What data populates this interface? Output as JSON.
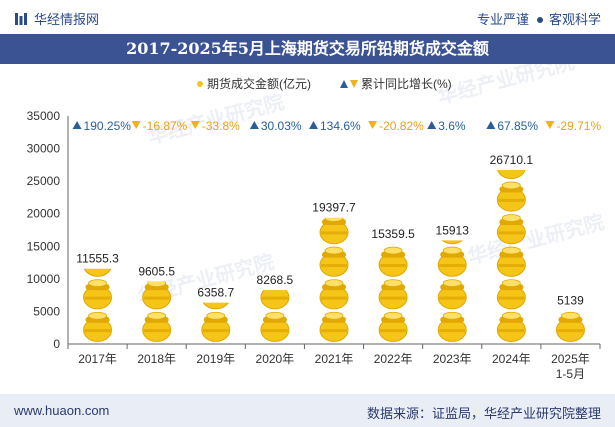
{
  "header": {
    "brand": "华经情报网",
    "tag1": "专业严谨",
    "tag2": "客观科学",
    "title": "2017-2025年5月上海期货交易所铅期货成交金额"
  },
  "footer": {
    "url": "www.huaon.com",
    "source": "数据来源：证监局，华经产业研究院整理"
  },
  "watermark": "华经产业研究院",
  "watermark_url": "www.huaon.com",
  "colors": {
    "gold": "#f5c518",
    "gold_dark": "#e0a800",
    "up": "#2a5d9a",
    "down": "#f0b11e",
    "title_bg": "#3b5293"
  },
  "chart_data": {
    "type": "bar",
    "categories": [
      "2017年",
      "2018年",
      "2019年",
      "2020年",
      "2021年",
      "2022年",
      "2023年",
      "2024年",
      "2025年"
    ],
    "category_sub": [
      "",
      "",
      "",
      "",
      "",
      "",
      "",
      "",
      "1-5月"
    ],
    "series": [
      {
        "name": "期货成交金额(亿元)",
        "values": [
          11555.3,
          9605.5,
          6358.7,
          8268.5,
          19397.7,
          15359.5,
          15913,
          26710.1,
          5139
        ]
      },
      {
        "name": "累计同比增长(%)",
        "values": [
          190.25,
          -16.87,
          -33.8,
          30.03,
          134.6,
          -20.82,
          3.6,
          67.85,
          -29.71
        ]
      }
    ],
    "value_labels": [
      "11555.3",
      "9605.5",
      "6358.7",
      "8268.5",
      "19397.7",
      "15359.5",
      "15913",
      "26710.1",
      "5139"
    ],
    "growth_labels": [
      "190.25%",
      "-16.87%",
      "-33.8%",
      "30.03%",
      "134.6%",
      "-20.82%",
      "3.6%",
      "67.85%",
      "-29.71%"
    ],
    "legend": [
      "期货成交金额(亿元)",
      "累计同比增长(%)"
    ],
    "ylim": [
      0,
      35000
    ],
    "yticks": [
      0,
      5000,
      10000,
      15000,
      20000,
      25000,
      30000,
      35000
    ],
    "yticks_labels": [
      "0",
      "5000",
      "10000",
      "15000",
      "20000",
      "25000",
      "30000",
      "35000"
    ],
    "unit_per_icon": 5000
  }
}
